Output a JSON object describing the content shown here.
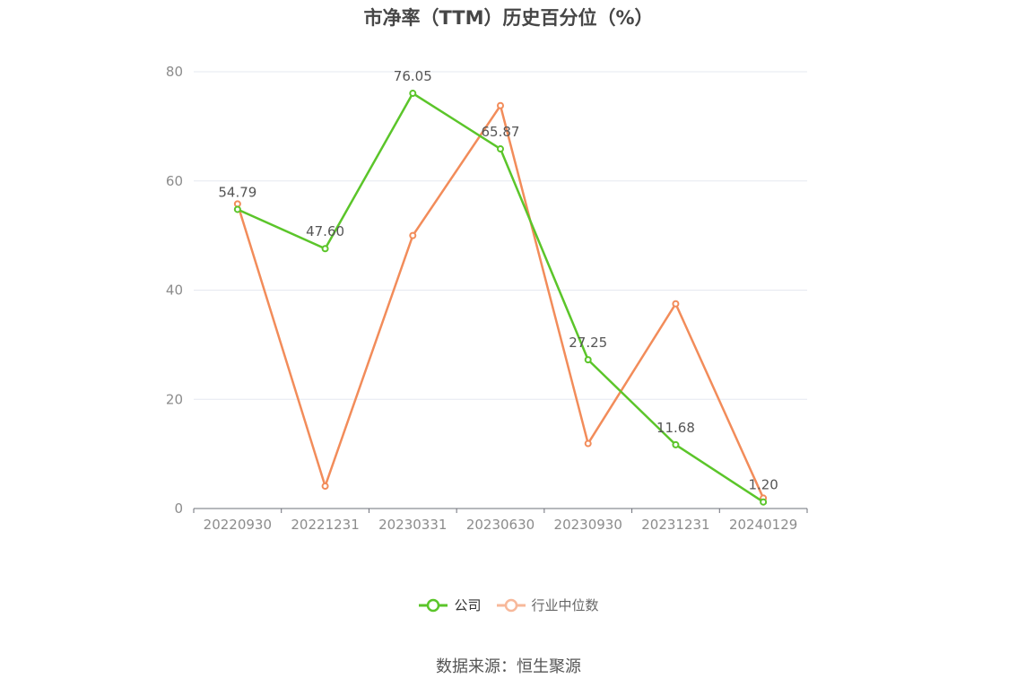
{
  "chart_data": {
    "type": "line",
    "title": "市净率（TTM）历史百分位（%）",
    "categories": [
      "20220930",
      "20221231",
      "20230331",
      "20230630",
      "20230930",
      "20231231",
      "20240129"
    ],
    "ylim": [
      0,
      80
    ],
    "yticks": [
      0,
      20,
      40,
      60,
      80
    ],
    "grid": true,
    "legend_position": "bottom",
    "series": [
      {
        "name": "公司",
        "color": "#5bc52a",
        "values": [
          54.79,
          47.6,
          76.05,
          65.87,
          27.25,
          11.68,
          1.2
        ],
        "labels": [
          "54.79",
          "47.60",
          "76.05",
          "65.87",
          "27.25",
          "11.68",
          "1.20"
        ]
      },
      {
        "name": "行业中位数",
        "color": "#f28c5a",
        "legend_color": "#f7b89a",
        "values": [
          55.8,
          4.1,
          50.0,
          73.8,
          11.9,
          37.5,
          1.9
        ]
      }
    ]
  },
  "source": "数据来源：恒生聚源"
}
